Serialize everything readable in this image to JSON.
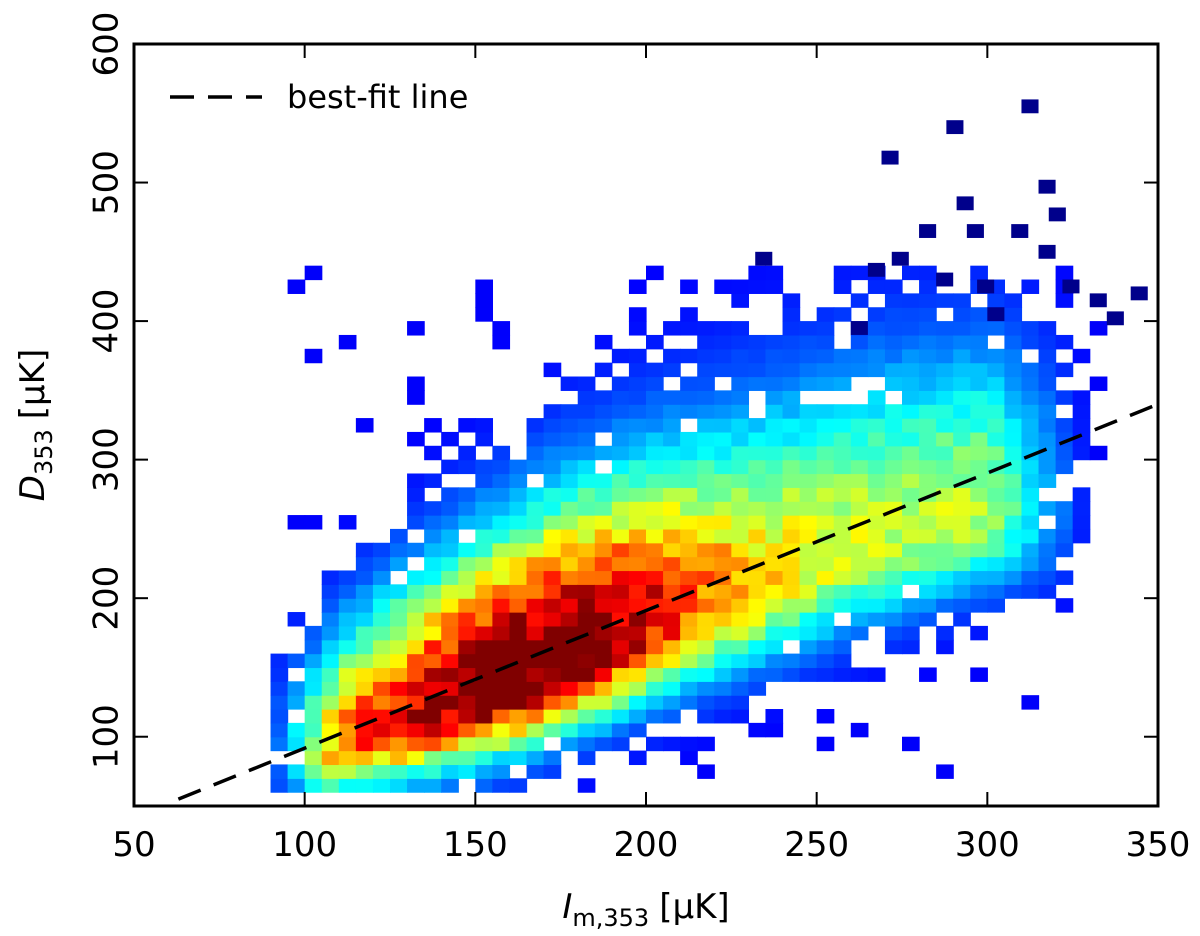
{
  "chart_data": {
    "type": "heatmap",
    "title": "",
    "xlabel": {
      "symbol": "I",
      "subscript": "m,353",
      "unit": "[μK]"
    },
    "ylabel": {
      "symbol": "D",
      "subscript": "353",
      "unit": "[μK]"
    },
    "xlim": [
      50,
      350
    ],
    "ylim": [
      50,
      600
    ],
    "xticks": [
      50,
      100,
      150,
      200,
      250,
      300,
      350
    ],
    "yticks": [
      100,
      200,
      300,
      400,
      500,
      600
    ],
    "grid": false,
    "colormap": "jet",
    "bin_size": {
      "x": 5,
      "y": 10
    },
    "legend": {
      "position": "top-left",
      "entries": [
        {
          "label": "best-fit line",
          "style": "dashed",
          "color": "#000000"
        }
      ]
    },
    "best_fit_line": {
      "x": [
        63,
        350
      ],
      "y": [
        55,
        340
      ]
    },
    "ridge": [
      {
        "x": 100,
        "y": 85,
        "w": 18
      },
      {
        "x": 125,
        "y": 108,
        "w": 22
      },
      {
        "x": 150,
        "y": 130,
        "w": 25
      },
      {
        "x": 175,
        "y": 155,
        "w": 27
      },
      {
        "x": 200,
        "y": 180,
        "w": 28
      },
      {
        "x": 225,
        "y": 203,
        "w": 29
      },
      {
        "x": 250,
        "y": 225,
        "w": 30
      },
      {
        "x": 275,
        "y": 245,
        "w": 30
      },
      {
        "x": 300,
        "y": 262,
        "w": 28
      }
    ],
    "outliers": [
      [
        310,
        550
      ],
      [
        288,
        535
      ],
      [
        269,
        513
      ],
      [
        315,
        492
      ],
      [
        291,
        480
      ],
      [
        318,
        472
      ],
      [
        232,
        440
      ],
      [
        280,
        460
      ],
      [
        294,
        460
      ],
      [
        307,
        460
      ],
      [
        272,
        440
      ],
      [
        315,
        445
      ],
      [
        265,
        432
      ],
      [
        285,
        425
      ],
      [
        297,
        420
      ],
      [
        322,
        420
      ],
      [
        342,
        415
      ],
      [
        330,
        410
      ],
      [
        300,
        400
      ],
      [
        335,
        397
      ],
      [
        260,
        390
      ]
    ]
  }
}
